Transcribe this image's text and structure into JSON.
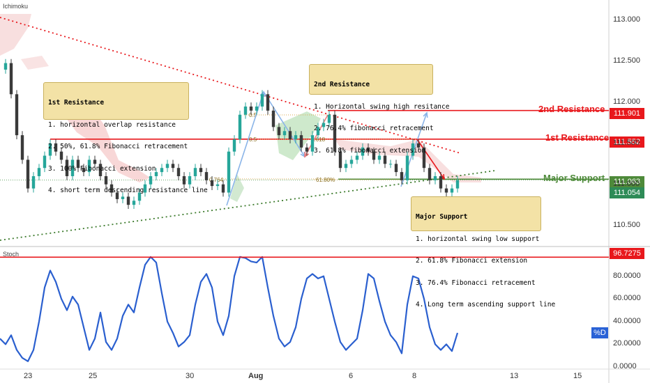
{
  "chart_data": {
    "type": "candlestick",
    "indicator_label": "Ichimoku",
    "stoch_label": "Stoch",
    "percent_d_label": "%D",
    "x_ticks": [
      "23",
      "25",
      "30",
      "Aug",
      "6",
      "8",
      "13",
      "15"
    ],
    "price_axis": {
      "range": [
        110.25,
        113.25
      ],
      "ticks": [
        "113.000",
        "112.500",
        "112.000",
        "111.500",
        "111.000",
        "110.500"
      ]
    },
    "stoch_axis": {
      "range": [
        0,
        100
      ],
      "ticks": [
        "80.0000",
        "60.0000",
        "40.0000",
        "20.0000",
        "0.0000"
      ]
    },
    "levels": {
      "second_resistance": {
        "label": "2nd Resistance",
        "value": "111.901",
        "y": 111.901,
        "color": "#e8181c"
      },
      "first_resistance": {
        "label": "1st Resistance",
        "value": "111.552",
        "y": 111.552,
        "color": "#e8181c"
      },
      "major_support": {
        "label": "Major Support",
        "value": "111.063",
        "y": 111.063,
        "color": "#4e8a3a"
      },
      "last_price": {
        "value": "111.054",
        "y": 111.054,
        "color": "#2e8b57"
      },
      "stoch_level": {
        "value": "96.7275",
        "y": 96.7275,
        "color": "#e8181c"
      }
    },
    "fib_labels": [
      "0.5",
      "0.618",
      "0.764",
      "61.80%",
      "0.5"
    ],
    "notes": {
      "first": {
        "title": "1st Resistance",
        "lines": [
          "1. horizontal overlap resistance",
          "2. 50%, 61.8% Fibonacci retracement",
          "3. 100% Fibonacci extension",
          "4. short term descending resistance line"
        ]
      },
      "second": {
        "title": "2nd Resistance",
        "lines": [
          "1. Horizontal swing high resitance",
          "2. 76.4% fibonacci retracement",
          "3. 61.8% fibonacci extension"
        ]
      },
      "support": {
        "title": "Major Support",
        "lines": [
          "1. horizontal swing low support",
          "2. 61.8% Fibonacci extension",
          "3. 76.4% Fibonacci retracement",
          "4. Long term ascending support line"
        ]
      }
    },
    "price_path": [
      [
        0,
        112.4
      ],
      [
        8,
        112.48
      ],
      [
        16,
        112.1
      ],
      [
        24,
        111.6
      ],
      [
        32,
        111.3
      ],
      [
        40,
        110.95
      ],
      [
        48,
        111.1
      ],
      [
        56,
        111.2
      ],
      [
        64,
        111.35
      ],
      [
        72,
        111.5
      ],
      [
        80,
        111.4
      ],
      [
        88,
        111.3
      ],
      [
        96,
        111.1
      ],
      [
        104,
        111.3
      ],
      [
        112,
        111.2
      ],
      [
        120,
        111.15
      ],
      [
        128,
        111.3
      ],
      [
        136,
        111.25
      ],
      [
        144,
        111.1
      ],
      [
        152,
        111.0
      ],
      [
        160,
        110.9
      ],
      [
        168,
        110.82
      ],
      [
        176,
        110.85
      ],
      [
        184,
        110.75
      ],
      [
        192,
        110.8
      ],
      [
        200,
        110.9
      ],
      [
        208,
        111.0
      ],
      [
        216,
        111.1
      ],
      [
        224,
        111.15
      ],
      [
        232,
        111.2
      ],
      [
        240,
        111.25
      ],
      [
        248,
        111.2
      ],
      [
        256,
        111.1
      ],
      [
        264,
        111.0
      ],
      [
        272,
        111.1
      ],
      [
        280,
        111.2
      ],
      [
        288,
        111.15
      ],
      [
        296,
        111.05
      ],
      [
        304,
        110.98
      ],
      [
        312,
        111.0
      ],
      [
        320,
        110.9
      ],
      [
        328,
        111.4
      ],
      [
        336,
        111.55
      ],
      [
        344,
        111.85
      ],
      [
        352,
        111.95
      ],
      [
        360,
        111.9
      ],
      [
        368,
        111.95
      ],
      [
        376,
        112.1
      ],
      [
        384,
        111.9
      ],
      [
        392,
        111.7
      ],
      [
        400,
        111.6
      ],
      [
        408,
        111.65
      ],
      [
        416,
        111.55
      ],
      [
        424,
        111.6
      ],
      [
        432,
        111.45
      ],
      [
        440,
        111.4
      ],
      [
        448,
        111.6
      ],
      [
        456,
        111.7
      ],
      [
        464,
        111.75
      ],
      [
        472,
        111.85
      ],
      [
        480,
        111.4
      ],
      [
        488,
        111.2
      ],
      [
        496,
        111.25
      ],
      [
        504,
        111.3
      ],
      [
        512,
        111.35
      ],
      [
        520,
        111.45
      ],
      [
        528,
        111.4
      ],
      [
        536,
        111.3
      ],
      [
        544,
        111.35
      ],
      [
        552,
        111.25
      ],
      [
        560,
        111.25
      ],
      [
        568,
        111.15
      ],
      [
        576,
        111.05
      ],
      [
        584,
        111.35
      ],
      [
        592,
        111.5
      ],
      [
        600,
        111.45
      ],
      [
        608,
        111.2
      ],
      [
        616,
        111.05
      ],
      [
        624,
        111.1
      ],
      [
        632,
        110.95
      ],
      [
        640,
        110.9
      ],
      [
        648,
        110.95
      ],
      [
        656,
        111.05
      ]
    ],
    "stoch_path": [
      [
        0,
        25
      ],
      [
        8,
        20
      ],
      [
        16,
        28
      ],
      [
        24,
        15
      ],
      [
        32,
        8
      ],
      [
        40,
        5
      ],
      [
        48,
        15
      ],
      [
        56,
        40
      ],
      [
        64,
        70
      ],
      [
        72,
        85
      ],
      [
        80,
        75
      ],
      [
        88,
        60
      ],
      [
        96,
        50
      ],
      [
        104,
        62
      ],
      [
        112,
        55
      ],
      [
        120,
        35
      ],
      [
        128,
        15
      ],
      [
        136,
        25
      ],
      [
        144,
        48
      ],
      [
        152,
        22
      ],
      [
        160,
        15
      ],
      [
        168,
        25
      ],
      [
        176,
        45
      ],
      [
        184,
        55
      ],
      [
        192,
        48
      ],
      [
        200,
        70
      ],
      [
        208,
        90
      ],
      [
        216,
        97
      ],
      [
        224,
        92
      ],
      [
        232,
        65
      ],
      [
        240,
        40
      ],
      [
        248,
        30
      ],
      [
        256,
        18
      ],
      [
        264,
        22
      ],
      [
        272,
        28
      ],
      [
        280,
        55
      ],
      [
        288,
        75
      ],
      [
        296,
        82
      ],
      [
        304,
        70
      ],
      [
        312,
        40
      ],
      [
        320,
        28
      ],
      [
        328,
        45
      ],
      [
        336,
        80
      ],
      [
        344,
        97
      ],
      [
        352,
        96
      ],
      [
        360,
        93
      ],
      [
        368,
        92
      ],
      [
        376,
        97
      ],
      [
        384,
        70
      ],
      [
        392,
        45
      ],
      [
        400,
        25
      ],
      [
        408,
        18
      ],
      [
        416,
        22
      ],
      [
        424,
        35
      ],
      [
        432,
        60
      ],
      [
        440,
        78
      ],
      [
        448,
        82
      ],
      [
        456,
        78
      ],
      [
        464,
        80
      ],
      [
        472,
        60
      ],
      [
        480,
        40
      ],
      [
        488,
        22
      ],
      [
        496,
        15
      ],
      [
        504,
        20
      ],
      [
        512,
        25
      ],
      [
        520,
        50
      ],
      [
        528,
        82
      ],
      [
        536,
        78
      ],
      [
        544,
        58
      ],
      [
        552,
        40
      ],
      [
        560,
        28
      ],
      [
        568,
        22
      ],
      [
        576,
        12
      ],
      [
        584,
        55
      ],
      [
        592,
        80
      ],
      [
        600,
        78
      ],
      [
        608,
        60
      ],
      [
        616,
        35
      ],
      [
        624,
        20
      ],
      [
        632,
        15
      ],
      [
        640,
        20
      ],
      [
        648,
        14
      ],
      [
        656,
        30
      ]
    ]
  }
}
